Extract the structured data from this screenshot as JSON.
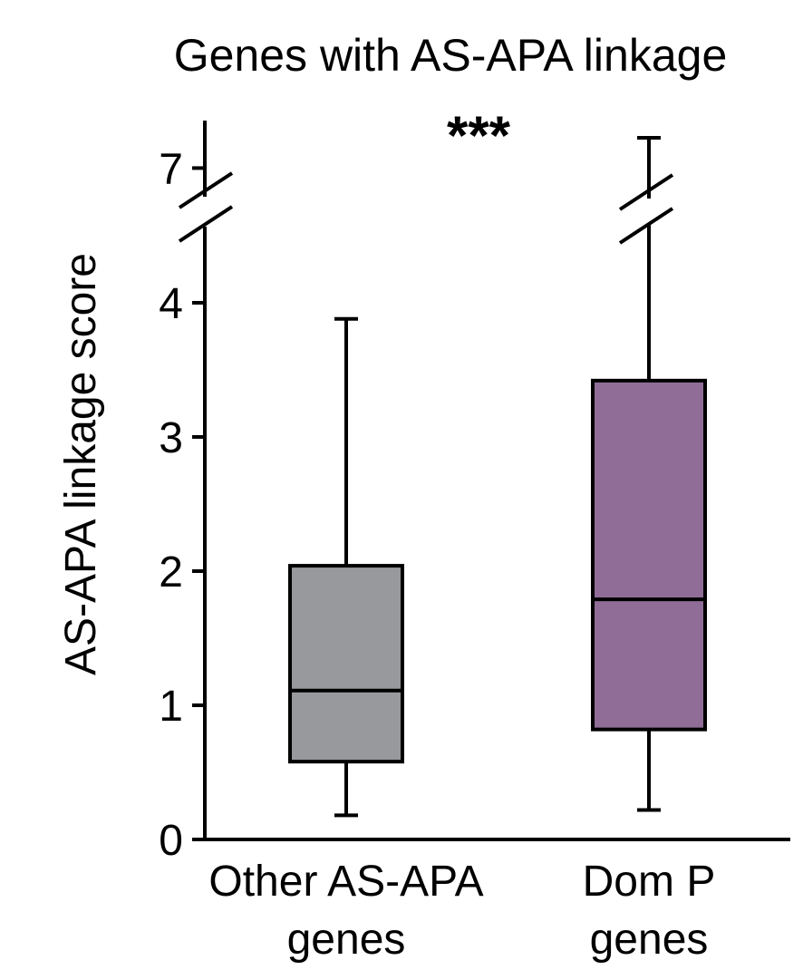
{
  "chart_data": {
    "type": "box",
    "title": "Genes with AS-APA linkage",
    "ylabel": "AS-APA linkage score",
    "ylim": [
      0,
      7.25
    ],
    "axis_break": [
      4.5,
      6.8
    ],
    "yticks": [
      {
        "value": 0,
        "label": "0"
      },
      {
        "value": 1,
        "label": "1"
      },
      {
        "value": 2,
        "label": "2"
      },
      {
        "value": 3,
        "label": "3"
      },
      {
        "value": 4,
        "label": "4"
      },
      {
        "value": 7,
        "label": "7"
      }
    ],
    "significance": "***",
    "boxes": [
      {
        "name": "Other AS-APA genes",
        "label_lines": [
          "Other AS-APA",
          "genes"
        ],
        "whisker_low": 0.18,
        "q1": 0.58,
        "median": 1.11,
        "q3": 2.04,
        "whisker_high": 3.88,
        "color": "#98999c"
      },
      {
        "name": "Dom P genes",
        "label_lines": [
          "Dom P",
          "genes"
        ],
        "whisker_low": 0.22,
        "q1": 0.82,
        "median": 1.79,
        "q3": 3.42,
        "whisker_high": 7.25,
        "whisker_broken": true,
        "color": "#8f6d97"
      }
    ]
  }
}
